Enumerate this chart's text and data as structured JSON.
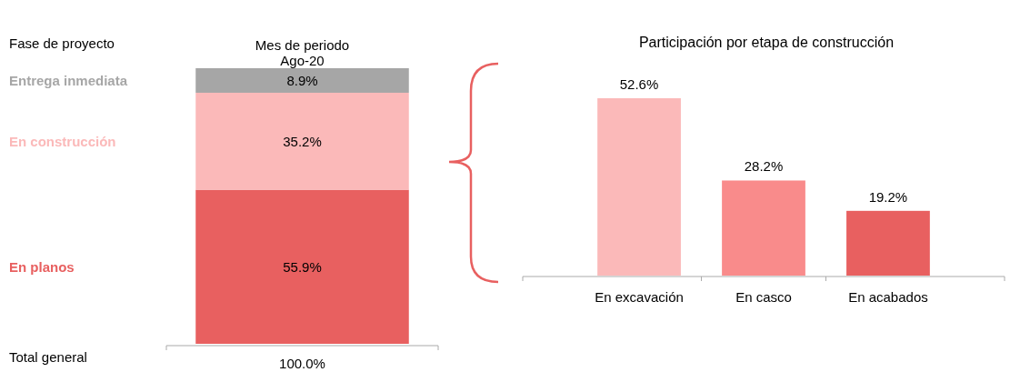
{
  "chart_data": [
    {
      "type": "bar",
      "stacked": true,
      "title": "Mes de periodo",
      "legend_title": "Fase de proyecto",
      "subtitle": "Ago-20",
      "categories": [
        null
      ],
      "totals": [
        "100.0%"
      ],
      "annotations": [
        "Total general"
      ],
      "series": [
        {
          "name": "En planos",
          "color": "#e86060",
          "values": [
            55.9
          ],
          "value_labels": [
            "55.9%"
          ]
        },
        {
          "name": "En construcción",
          "color": "#fbb9b9",
          "values": [
            35.2
          ],
          "value_labels": [
            "35.2%"
          ]
        },
        {
          "name": "Entrega inmediata",
          "color": "#a6a6a6",
          "values": [
            8.9
          ],
          "value_labels": [
            "8.9%"
          ]
        }
      ]
    },
    {
      "type": "bar",
      "title": "Participación por etapa de construcción",
      "categories": [
        "En excavación",
        "En casco",
        "En acabados"
      ],
      "values": [
        52.6,
        28.2,
        19.2
      ],
      "colors": [
        "#fbb9b9",
        "#f98b8b",
        "#e86060"
      ],
      "value_labels": [
        "52.6%",
        "28.2%",
        "19.2%"
      ]
    }
  ]
}
